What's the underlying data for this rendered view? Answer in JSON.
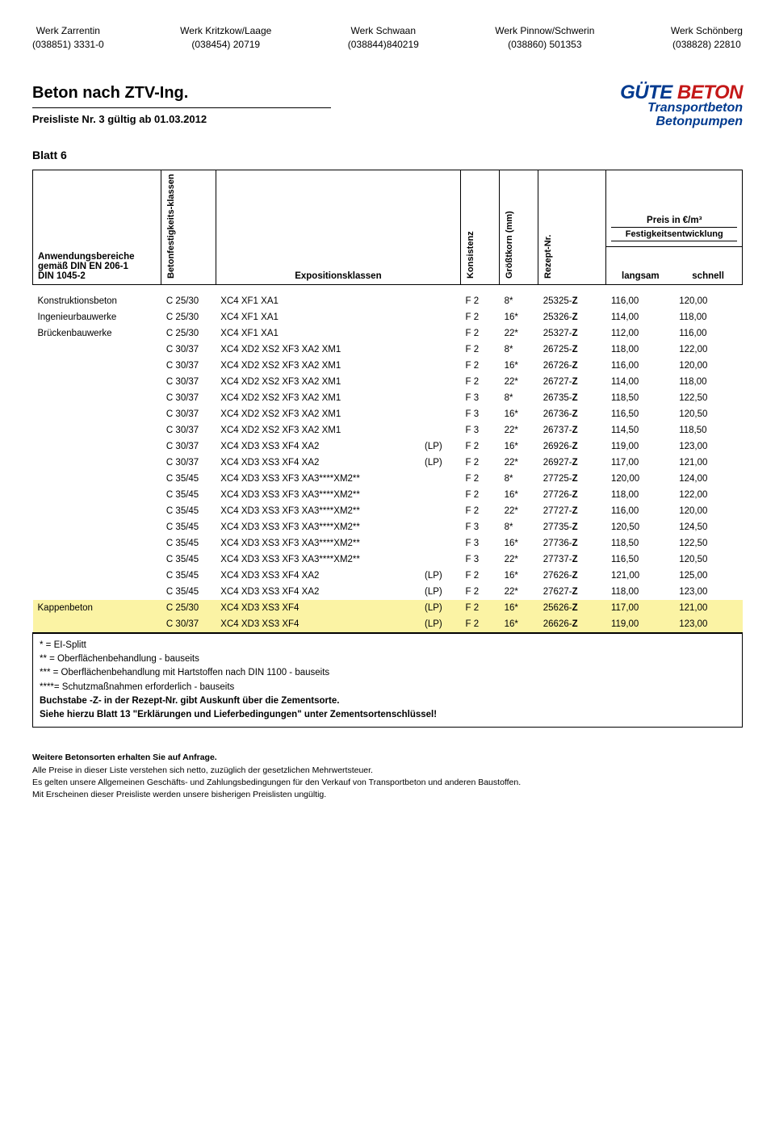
{
  "plants": [
    {
      "name": "Werk  Zarrentin",
      "phone": "(038851) 3331-0"
    },
    {
      "name": "Werk Kritzkow/Laage",
      "phone": "(038454) 20719"
    },
    {
      "name": "Werk Schwaan",
      "phone": "(038844)840219"
    },
    {
      "name": "Werk Pinnow/Schwerin",
      "phone": "(038860) 501353"
    },
    {
      "name": "Werk Schönberg",
      "phone": "(038828) 22810"
    }
  ],
  "title": "Beton nach ZTV-Ing.",
  "subtitle": "Preisliste Nr. 3  gültig ab 01.03.2012",
  "logo": {
    "line1a": "GÜTE ",
    "line1b": "BETON",
    "line2": "Transportbeton",
    "line3": "Betonpumpen"
  },
  "sheet": "Blatt 6",
  "head": {
    "app_area": "Anwendungsbereiche gemäß DIN EN 206-1\nDIN 1045-2",
    "bfk": "Betonfestigkeits-klassen",
    "exp": "Expositionsklassen",
    "kons": "Konsistenz",
    "korn": "Größtkorn (mm)",
    "rez": "Rezept-Nr.",
    "price_top": "Preis in €/m³",
    "price_dev": "Festigkeitsentwicklung",
    "slow": "langsam",
    "fast": "schnell"
  },
  "rows": [
    {
      "label": "Konstruktionsbeton",
      "bfk": "C 25/30",
      "exp": "XC4 XF1 XA1",
      "lp": "",
      "kons": "F 2",
      "korn": "8*",
      "rez": "25325-",
      "rz": "Z",
      "p1": "116,00",
      "p2": "120,00",
      "hl": false
    },
    {
      "label": "Ingenieurbauwerke",
      "bfk": "C 25/30",
      "exp": "XC4 XF1 XA1",
      "lp": "",
      "kons": "F 2",
      "korn": "16*",
      "rez": "25326-",
      "rz": "Z",
      "p1": "114,00",
      "p2": "118,00",
      "hl": false
    },
    {
      "label": "Brückenbauwerke",
      "bfk": "C 25/30",
      "exp": "XC4 XF1 XA1",
      "lp": "",
      "kons": "F 2",
      "korn": "22*",
      "rez": "25327-",
      "rz": "Z",
      "p1": "112,00",
      "p2": "116,00",
      "hl": false
    },
    {
      "label": "",
      "bfk": "C 30/37",
      "exp": "XC4 XD2 XS2 XF3 XA2 XM1",
      "lp": "",
      "kons": "F 2",
      "korn": "8*",
      "rez": "26725-",
      "rz": "Z",
      "p1": "118,00",
      "p2": "122,00",
      "hl": false
    },
    {
      "label": "",
      "bfk": "C 30/37",
      "exp": "XC4 XD2 XS2 XF3 XA2 XM1",
      "lp": "",
      "kons": "F 2",
      "korn": "16*",
      "rez": "26726-",
      "rz": "Z",
      "p1": "116,00",
      "p2": "120,00",
      "hl": false
    },
    {
      "label": "",
      "bfk": "C 30/37",
      "exp": "XC4 XD2 XS2 XF3 XA2 XM1",
      "lp": "",
      "kons": "F 2",
      "korn": "22*",
      "rez": "26727-",
      "rz": "Z",
      "p1": "114,00",
      "p2": "118,00",
      "hl": false
    },
    {
      "label": "",
      "bfk": "C 30/37",
      "exp": "XC4 XD2 XS2 XF3 XA2 XM1",
      "lp": "",
      "kons": "F 3",
      "korn": "8*",
      "rez": "26735-",
      "rz": "Z",
      "p1": "118,50",
      "p2": "122,50",
      "hl": false
    },
    {
      "label": "",
      "bfk": "C 30/37",
      "exp": "XC4 XD2 XS2 XF3 XA2 XM1",
      "lp": "",
      "kons": "F 3",
      "korn": "16*",
      "rez": "26736-",
      "rz": "Z",
      "p1": "116,50",
      "p2": "120,50",
      "hl": false
    },
    {
      "label": "",
      "bfk": "C 30/37",
      "exp": "XC4 XD2 XS2 XF3 XA2 XM1",
      "lp": "",
      "kons": "F 3",
      "korn": "22*",
      "rez": "26737-",
      "rz": "Z",
      "p1": "114,50",
      "p2": "118,50",
      "hl": false
    },
    {
      "label": "",
      "bfk": "C 30/37",
      "exp": "XC4 XD3 XS3 XF4 XA2",
      "lp": "(LP)",
      "kons": "F 2",
      "korn": "16*",
      "rez": "26926-",
      "rz": "Z",
      "p1": "119,00",
      "p2": "123,00",
      "hl": false
    },
    {
      "label": "",
      "bfk": "C 30/37",
      "exp": "XC4 XD3 XS3 XF4 XA2",
      "lp": "(LP)",
      "kons": "F 2",
      "korn": "22*",
      "rez": "26927-",
      "rz": "Z",
      "p1": "117,00",
      "p2": "121,00",
      "hl": false
    },
    {
      "label": "",
      "bfk": "C 35/45",
      "exp": "XC4 XD3 XS3 XF3 XA3****XM2**",
      "lp": "",
      "kons": "F 2",
      "korn": "8*",
      "rez": "27725-",
      "rz": "Z",
      "p1": "120,00",
      "p2": "124,00",
      "hl": false
    },
    {
      "label": "",
      "bfk": "C 35/45",
      "exp": "XC4 XD3 XS3 XF3 XA3****XM2**",
      "lp": "",
      "kons": "F 2",
      "korn": "16*",
      "rez": "27726-",
      "rz": "Z",
      "p1": "118,00",
      "p2": "122,00",
      "hl": false
    },
    {
      "label": "",
      "bfk": "C 35/45",
      "exp": "XC4 XD3 XS3 XF3 XA3****XM2**",
      "lp": "",
      "kons": "F 2",
      "korn": "22*",
      "rez": "27727-",
      "rz": "Z",
      "p1": "116,00",
      "p2": "120,00",
      "hl": false
    },
    {
      "label": "",
      "bfk": "C 35/45",
      "exp": "XC4 XD3 XS3 XF3 XA3****XM2**",
      "lp": "",
      "kons": "F 3",
      "korn": "8*",
      "rez": "27735-",
      "rz": "Z",
      "p1": "120,50",
      "p2": "124,50",
      "hl": false
    },
    {
      "label": "",
      "bfk": "C 35/45",
      "exp": "XC4 XD3 XS3 XF3 XA3****XM2**",
      "lp": "",
      "kons": "F 3",
      "korn": "16*",
      "rez": "27736-",
      "rz": "Z",
      "p1": "118,50",
      "p2": "122,50",
      "hl": false
    },
    {
      "label": "",
      "bfk": "C 35/45",
      "exp": "XC4 XD3 XS3 XF3 XA3****XM2**",
      "lp": "",
      "kons": "F 3",
      "korn": "22*",
      "rez": "27737-",
      "rz": "Z",
      "p1": "116,50",
      "p2": "120,50",
      "hl": false
    },
    {
      "label": "",
      "bfk": "C 35/45",
      "exp": "XC4 XD3 XS3 XF4 XA2",
      "lp": "(LP)",
      "kons": "F 2",
      "korn": "16*",
      "rez": "27626-",
      "rz": "Z",
      "p1": "121,00",
      "p2": "125,00",
      "hl": false
    },
    {
      "label": "",
      "bfk": "C 35/45",
      "exp": "XC4 XD3 XS3 XF4 XA2",
      "lp": "(LP)",
      "kons": "F 2",
      "korn": "22*",
      "rez": "27627-",
      "rz": "Z",
      "p1": "118,00",
      "p2": "123,00",
      "hl": false
    },
    {
      "label": "Kappenbeton",
      "bfk": "C 25/30",
      "exp": "XC4 XD3 XS3 XF4",
      "lp": "(LP)",
      "kons": "F 2",
      "korn": "16*",
      "rez": "25626-",
      "rz": "Z",
      "p1": "117,00",
      "p2": "121,00",
      "hl": true
    },
    {
      "label": "",
      "bfk": "C 30/37",
      "exp": "XC4 XD3 XS3 XF4",
      "lp": "(LP)",
      "kons": "F 2",
      "korn": "16*",
      "rez": "26626-",
      "rz": "Z",
      "p1": "119,00",
      "p2": "123,00",
      "hl": true
    }
  ],
  "notes": [
    "*     = EI-Splitt",
    "**   = Oberflächenbehandlung - bauseits",
    "*** = Oberflächenbehandlung mit Hartstoffen nach DIN 1100 - bauseits",
    "****= Schutzmaßnahmen erforderlich - bauseits"
  ],
  "notes_bold": [
    "Buchstabe -Z- in der Rezept-Nr. gibt Auskunft über die Zementsorte.",
    "Siehe hierzu Blatt 13 \"Erklärungen und Lieferbedingungen\" unter Zementsortenschlüssel!"
  ],
  "footer": {
    "b": "Weitere Betonsorten erhalten Sie auf Anfrage.",
    "lines": [
      "Alle Preise in dieser Liste verstehen sich netto, zuzüglich  der gesetzlichen Mehrwertsteuer.",
      "Es gelten unsere Allgemeinen Geschäfts- und Zahlungsbedingungen für den Verkauf von Transportbeton und anderen Baustoffen.",
      "Mit Erscheinen dieser Preisliste werden unsere bisherigen Preislisten ungültig."
    ]
  }
}
